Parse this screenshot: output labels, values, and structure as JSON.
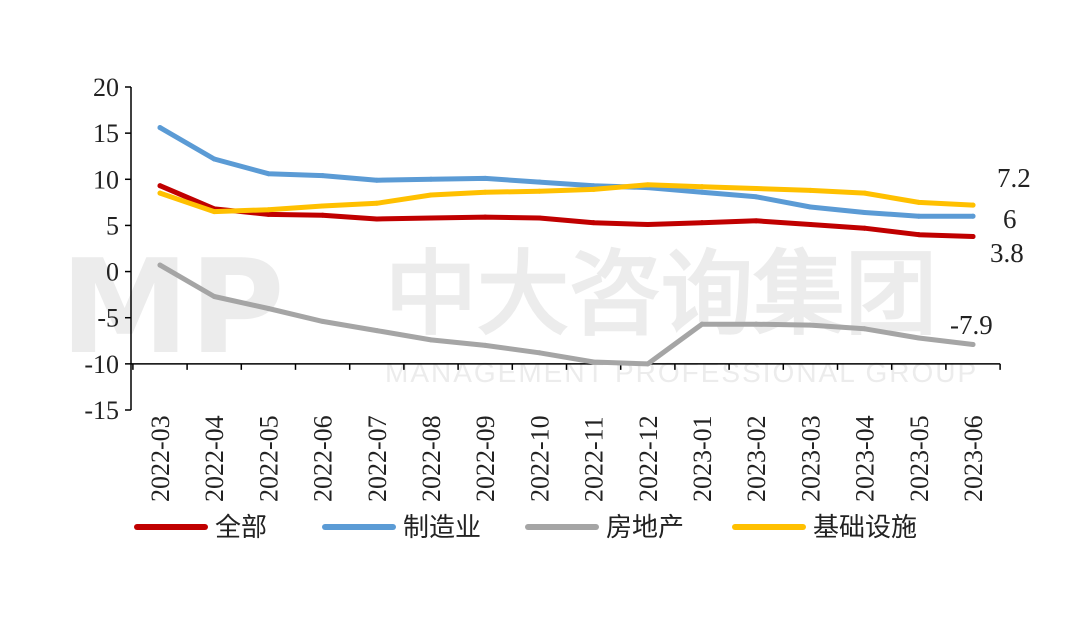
{
  "watermark": {
    "logo": "MP",
    "name_cn": "中大咨询集团",
    "name_en": "MANAGEMENT PROFESSIONAL GROUP"
  },
  "chart_data": {
    "type": "line",
    "title": "",
    "xlabel": "",
    "ylabel": "",
    "ylim": [
      -15,
      20
    ],
    "yticks": [
      20,
      15,
      10,
      5,
      0,
      -5,
      -10,
      -15
    ],
    "grid": false,
    "legend_position": "bottom",
    "categories": [
      "2022-03",
      "2022-04",
      "2022-05",
      "2022-06",
      "2022-07",
      "2022-08",
      "2022-09",
      "2022-10",
      "2022-11",
      "2022-12",
      "2023-01",
      "2023-02",
      "2023-03",
      "2023-04",
      "2023-05",
      "2023-06"
    ],
    "series": [
      {
        "name": "全部",
        "color": "#c00000",
        "values": [
          9.3,
          6.8,
          6.2,
          6.1,
          5.7,
          5.8,
          5.9,
          5.8,
          5.3,
          5.1,
          5.3,
          5.5,
          5.1,
          4.7,
          4.0,
          3.8
        ]
      },
      {
        "name": "制造业",
        "color": "#5b9bd5",
        "values": [
          15.6,
          12.2,
          10.6,
          10.4,
          9.9,
          10.0,
          10.1,
          9.7,
          9.3,
          9.1,
          8.6,
          8.1,
          7.0,
          6.4,
          6.0,
          6.0
        ]
      },
      {
        "name": "房地产",
        "color": "#a5a5a5",
        "values": [
          0.7,
          -2.7,
          -4.0,
          -5.4,
          -6.4,
          -7.4,
          -8.0,
          -8.8,
          -9.8,
          -10.0,
          -5.7,
          -5.7,
          -5.8,
          -6.2,
          -7.2,
          -7.9
        ]
      },
      {
        "name": "基础设施",
        "color": "#ffc000",
        "values": [
          8.5,
          6.5,
          6.7,
          7.1,
          7.4,
          8.3,
          8.6,
          8.7,
          8.9,
          9.4,
          9.2,
          9.0,
          8.8,
          8.5,
          7.5,
          7.2
        ]
      }
    ],
    "end_labels": [
      "7.2",
      "6",
      "3.8",
      "-7.9"
    ]
  }
}
